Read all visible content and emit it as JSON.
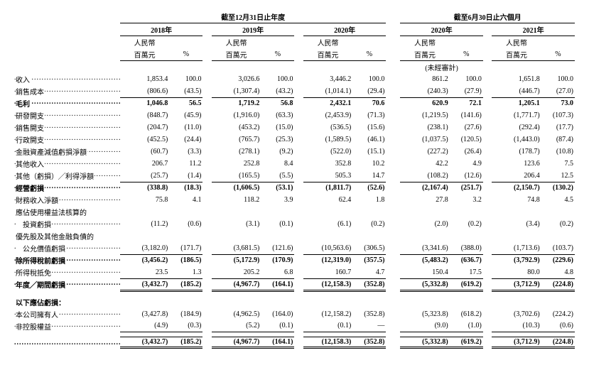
{
  "headers": {
    "period_year_end": "截至12月31日止年度",
    "period_six_months": "截至6月30日止六個月",
    "y2018": "2018年",
    "y2019": "2019年",
    "y2020": "2020年",
    "h2020": "2020年",
    "h2021": "2021年",
    "unit_val": "人民幣",
    "unit_val2": "百萬元",
    "unit_pct": "%",
    "unaudited": "(未經審計)"
  },
  "rows": [
    {
      "label": "收入",
      "v": [
        "1,853.4",
        "100.0",
        "3,026.6",
        "100.0",
        "3,446.2",
        "100.0",
        "861.2",
        "100.0",
        "1,651.8",
        "100.0"
      ]
    },
    {
      "label": "銷售成本",
      "v": [
        "(806.6)",
        "(43.5)",
        "(1,307.4)",
        "(43.2)",
        "(1,014.1)",
        "(29.4)",
        "(240.3)",
        "(27.9)",
        "(446.7)",
        "(27.0)"
      ],
      "top_after": true
    },
    {
      "label": "毛利",
      "v": [
        "1,046.8",
        "56.5",
        "1,719.2",
        "56.8",
        "2,432.1",
        "70.6",
        "620.9",
        "72.1",
        "1,205.1",
        "73.0"
      ],
      "bold": true,
      "top_line": true
    },
    {
      "label": "研發開支",
      "v": [
        "(848.7)",
        "(45.9)",
        "(1,916.0)",
        "(63.3)",
        "(2,453.9)",
        "(71.3)",
        "(1,219.5)",
        "(141.6)",
        "(1,771.7)",
        "(107.3)"
      ]
    },
    {
      "label": "銷售開支",
      "v": [
        "(204.7)",
        "(11.0)",
        "(453.2)",
        "(15.0)",
        "(536.5)",
        "(15.6)",
        "(238.1)",
        "(27.6)",
        "(292.4)",
        "(17.7)"
      ]
    },
    {
      "label": "行政開支",
      "v": [
        "(452.5)",
        "(24.4)",
        "(765.7)",
        "(25.3)",
        "(1,589.5)",
        "(46.1)",
        "(1,037.5)",
        "(120.5)",
        "(1,443.0)",
        "(87.4)"
      ]
    },
    {
      "label": "金融資產減值虧損淨額",
      "v": [
        "(60.7)",
        "(3.3)",
        "(278.1)",
        "(9.2)",
        "(522.0)",
        "(15.1)",
        "(227.2)",
        "(26.4)",
        "(178.7)",
        "(10.8)"
      ]
    },
    {
      "label": "其他收入",
      "v": [
        "206.7",
        "11.2",
        "252.8",
        "8.4",
        "352.8",
        "10.2",
        "42.2",
        "4.9",
        "123.6",
        "7.5"
      ]
    },
    {
      "label": "其他（虧損）╱利得淨額",
      "v": [
        "(25.7)",
        "(1.4)",
        "(165.5)",
        "(5.5)",
        "505.3",
        "14.7",
        "(108.2)",
        "(12.6)",
        "206.4",
        "12.5"
      ],
      "top_after": true
    },
    {
      "label": "經營虧損",
      "v": [
        "(338.8)",
        "(18.3)",
        "(1,606.5)",
        "(53.1)",
        "(1,811.7)",
        "(52.6)",
        "(2,167.4)",
        "(251.7)",
        "(2,150.7)",
        "(130.2)"
      ],
      "bold": true,
      "top_line": true,
      "dbl_line_top": true
    },
    {
      "label": "財務收入淨額",
      "v": [
        "75.8",
        "4.1",
        "118.2",
        "3.9",
        "62.4",
        "1.8",
        "27.8",
        "3.2",
        "74.8",
        "4.5"
      ]
    },
    {
      "label": "應佔使用權益法核算的",
      "nodots": true,
      "v": [
        "",
        "",
        "",
        "",
        "",
        "",
        "",
        "",
        "",
        ""
      ]
    },
    {
      "label": "　投資虧損",
      "v": [
        "(11.2)",
        "(0.6)",
        "(3.1)",
        "(0.1)",
        "(6.1)",
        "(0.2)",
        "(2.0)",
        "(0.2)",
        "(3.4)",
        "(0.2)"
      ]
    },
    {
      "label": "優先股及其他金融負債的",
      "nodots": true,
      "v": [
        "",
        "",
        "",
        "",
        "",
        "",
        "",
        "",
        "",
        ""
      ]
    },
    {
      "label": "　公允價值虧損",
      "v": [
        "(3,182.0)",
        "(171.7)",
        "(3,681.5)",
        "(121.6)",
        "(10,563.6)",
        "(306.5)",
        "(3,341.6)",
        "(388.0)",
        "(1,713.6)",
        "(103.7)"
      ],
      "top_after": true
    },
    {
      "label": "除所得稅前虧損",
      "v": [
        "(3,456.2)",
        "(186.5)",
        "(5,172.9)",
        "(170.9)",
        "(12,319.0)",
        "(357.5)",
        "(5,483.2)",
        "(636.7)",
        "(3,792.9)",
        "(229.6)"
      ],
      "bold": true,
      "top_line": true
    },
    {
      "label": "所得稅抵免",
      "v": [
        "23.5",
        "1.3",
        "205.2",
        "6.8",
        "160.7",
        "4.7",
        "150.4",
        "17.5",
        "80.0",
        "4.8"
      ],
      "top_after": true
    },
    {
      "label": "年度╱期間虧損",
      "v": [
        "(3,432.7)",
        "(185.2)",
        "(4,967.7)",
        "(164.1)",
        "(12,158.3)",
        "(352.8)",
        "(5,332.8)",
        "(619.2)",
        "(3,712.9)",
        "(224.8)"
      ],
      "bold": true,
      "top_line": true,
      "dbl_line": true
    },
    {
      "spacer": true
    },
    {
      "label": "以下應佔虧損：",
      "v": [
        "",
        "",
        "",
        "",
        "",
        "",
        "",
        "",
        "",
        ""
      ],
      "bold": true,
      "nodots": true
    },
    {
      "label": "本公司擁有人",
      "v": [
        "(3,427.8)",
        "(184.9)",
        "(4,962.5)",
        "(164.0)",
        "(12,158.2)",
        "(352.8)",
        "(5,323.8)",
        "(618.2)",
        "(3,702.6)",
        "(224.2)"
      ]
    },
    {
      "label": "非控股權益",
      "v": [
        "(4.9)",
        "(0.3)",
        "(5.2)",
        "(0.1)",
        "(0.1)",
        "—",
        "(9.0)",
        "(1.0)",
        "(10.3)",
        "(0.6)"
      ],
      "top_after": true
    },
    {
      "spacer": true
    },
    {
      "label": "",
      "v": [
        "(3,432.7)",
        "(185.2)",
        "(4,967.7)",
        "(164.1)",
        "(12,158.3)",
        "(352.8)",
        "(5,332.8)",
        "(619.2)",
        "(3,712.9)",
        "(224.8)"
      ],
      "bold": true,
      "top_line": true,
      "dbl_line": true
    }
  ]
}
